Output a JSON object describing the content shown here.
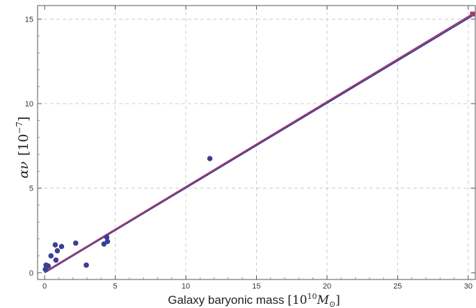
{
  "chart_data": {
    "type": "scatter",
    "xlabel_text": "Galaxy baryonic mass ",
    "xlabel_unit_base": "10",
    "xlabel_unit_exp": "10",
    "xlabel_unit_sym": "M",
    "xlabel_unit_sub": "⊙",
    "ylabel_sym": "αν",
    "ylabel_unit_base": "10",
    "ylabel_unit_exp": "−7",
    "xlim": [
      -0.5,
      30.5
    ],
    "ylim": [
      -0.4,
      15.8
    ],
    "x_ticks": [
      0,
      5,
      10,
      15,
      20,
      25,
      30
    ],
    "y_ticks": [
      0,
      5,
      10,
      15
    ],
    "grid": true,
    "colors": {
      "points": "#3b3f95",
      "line_blue": "#3b3f95",
      "line_purple": "#a03c72",
      "grid": "#cccccc"
    },
    "points": [
      {
        "x": 0.05,
        "y": 0.2
      },
      {
        "x": 0.1,
        "y": 0.45
      },
      {
        "x": 0.25,
        "y": 0.4
      },
      {
        "x": 0.45,
        "y": 1.0
      },
      {
        "x": 0.75,
        "y": 1.65
      },
      {
        "x": 0.8,
        "y": 0.75
      },
      {
        "x": 0.9,
        "y": 1.3
      },
      {
        "x": 1.2,
        "y": 1.55
      },
      {
        "x": 2.2,
        "y": 1.75
      },
      {
        "x": 2.95,
        "y": 0.45
      },
      {
        "x": 4.2,
        "y": 1.7
      },
      {
        "x": 4.4,
        "y": 2.1
      },
      {
        "x": 4.45,
        "y": 1.85
      },
      {
        "x": 11.7,
        "y": 6.75
      }
    ],
    "fit_lines": [
      {
        "color": "line_blue",
        "from": [
          0,
          0
        ],
        "to": [
          30.3,
          15.2
        ]
      },
      {
        "color": "line_purple",
        "from": [
          0,
          0.05
        ],
        "to": [
          30.3,
          15.3
        ]
      }
    ],
    "endpoint_marker": {
      "x": 30.3,
      "y": 15.3,
      "shape": "square"
    }
  }
}
